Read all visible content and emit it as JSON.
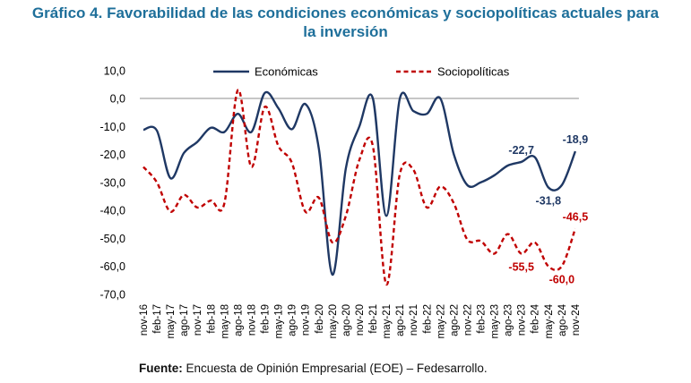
{
  "chart_data": {
    "type": "line",
    "title_line1": "Gráfico 4. Favorabilidad de las condiciones económicas y sociopolíticas actuales para",
    "title_line2": "la inversión",
    "ylim": [
      -70,
      10
    ],
    "yticks": [
      10,
      0,
      -10,
      -20,
      -30,
      -40,
      -50,
      -60,
      -70
    ],
    "ytick_labels": [
      "10,0",
      "0,0",
      "-10,0",
      "-20,0",
      "-30,0",
      "-40,0",
      "-50,0",
      "-60,0",
      "-70,0"
    ],
    "x_labels": [
      "nov-16",
      "feb-17",
      "may-17",
      "ago-17",
      "nov-17",
      "feb-18",
      "may-18",
      "ago-18",
      "nov-18",
      "feb-19",
      "may-19",
      "ago-19",
      "nov-19",
      "feb-20",
      "may-20",
      "ago-20",
      "nov-20",
      "feb-21",
      "may-21",
      "ago-21",
      "nov-21",
      "feb-22",
      "may-22",
      "ago-22",
      "nov-22",
      "feb-23",
      "may-23",
      "ago-23",
      "nov-23",
      "feb-24",
      "may-24",
      "ago-24",
      "nov-24"
    ],
    "series": [
      {
        "name": "Económicas",
        "color": "#1f3864",
        "style": "solid",
        "values": [
          -11.2,
          -11.5,
          -28.5,
          -19.5,
          -15.5,
          -10.5,
          -12.0,
          -5.5,
          -12.0,
          2.0,
          -3.5,
          -11.0,
          -2.0,
          -18.0,
          -63.0,
          -25.0,
          -10.0,
          0.0,
          -42.0,
          0.0,
          -4.5,
          -5.5,
          0.0,
          -20.0,
          -31.0,
          -30.0,
          -27.5,
          -24.0,
          -22.7,
          -21.0,
          -31.8,
          -31.0,
          -18.9
        ]
      },
      {
        "name": "Sociopolíticas",
        "color": "#c00000",
        "style": "dashed",
        "values": [
          -24.5,
          -30.0,
          -40.5,
          -34.5,
          -39.0,
          -36.5,
          -37.5,
          3.0,
          -24.5,
          -3.0,
          -17.0,
          -23.0,
          -40.5,
          -35.5,
          -51.5,
          -42.0,
          -22.0,
          -17.0,
          -66.5,
          -27.0,
          -25.5,
          -39.0,
          -31.5,
          -37.5,
          -50.5,
          -51.0,
          -55.5,
          -48.5,
          -55.5,
          -51.5,
          -60.0,
          -60.0,
          -46.5
        ]
      }
    ],
    "annotations": [
      {
        "series": 0,
        "index": 28,
        "text": "-22,7",
        "pos": "above"
      },
      {
        "series": 0,
        "index": 32,
        "text": "-18,9",
        "pos": "above"
      },
      {
        "series": 0,
        "index": 30,
        "text": "-31,8",
        "pos": "below"
      },
      {
        "series": 1,
        "index": 32,
        "text": "-46,5",
        "pos": "above"
      },
      {
        "series": 1,
        "index": 28,
        "text": "-55,5",
        "pos": "below"
      },
      {
        "series": 1,
        "index": 31,
        "text": "-60,0",
        "pos": "below"
      }
    ],
    "legend": [
      "Económicas",
      "Sociopolíticas"
    ],
    "legend_position": "top"
  },
  "source": {
    "label": "Fuente:",
    "text": " Encuesta de Opinión Empresarial (EOE) – Fedesarrollo."
  }
}
